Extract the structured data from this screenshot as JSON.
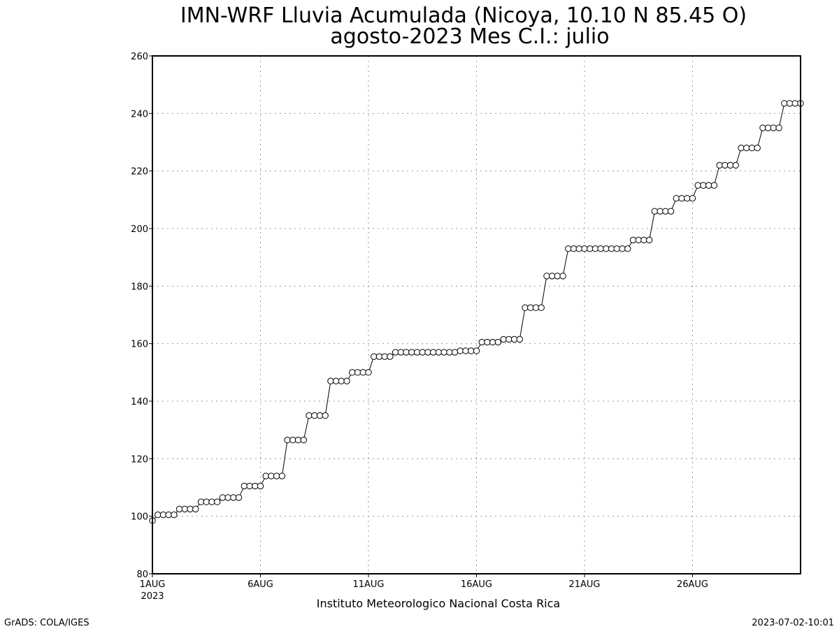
{
  "chart_data": {
    "type": "line",
    "title_line1": "IMN-WRF  Lluvia Acumulada (Nicoya, 10.10  N 85.45  O)",
    "title_line2": "agosto-2023 Mes C.I.: julio",
    "credit": "Instituto Meteorologico Nacional Costa Rica",
    "footer_left": "GrADS: COLA/IGES",
    "footer_right": "2023-07-02-10:01",
    "xlim": [
      1,
      31
    ],
    "ylim": [
      80,
      260
    ],
    "yticks": [
      80,
      100,
      120,
      140,
      160,
      180,
      200,
      220,
      240,
      260
    ],
    "xticks": [
      {
        "day": 1,
        "label": "1AUG",
        "sub": "2023"
      },
      {
        "day": 6,
        "label": "6AUG",
        "sub": ""
      },
      {
        "day": 11,
        "label": "11AUG",
        "sub": ""
      },
      {
        "day": 16,
        "label": "16AUG",
        "sub": ""
      },
      {
        "day": 21,
        "label": "21AUG",
        "sub": ""
      },
      {
        "day": 26,
        "label": "26AUG",
        "sub": ""
      }
    ],
    "grid": true,
    "marker": "open-circle",
    "line_color": "#000000",
    "series": [
      {
        "x": [
          1.0,
          1.25,
          1.5,
          1.75,
          2.0,
          2.25,
          2.5,
          2.75,
          3.0,
          3.25,
          3.5,
          3.75,
          4.0,
          4.25,
          4.5,
          4.75,
          5.0,
          5.25,
          5.5,
          5.75,
          6.0,
          6.25,
          6.5,
          6.75,
          7.0,
          7.25,
          7.5,
          7.75,
          8.0,
          8.25,
          8.5,
          8.75,
          9.0,
          9.25,
          9.5,
          9.75,
          10.0,
          10.25,
          10.5,
          10.75,
          11.0,
          11.25,
          11.5,
          11.75,
          12.0,
          12.25,
          12.5,
          12.75,
          13.0,
          13.25,
          13.5,
          13.75,
          14.0,
          14.25,
          14.5,
          14.75,
          15.0,
          15.25,
          15.5,
          15.75,
          16.0,
          16.25,
          16.5,
          16.75,
          17.0,
          17.25,
          17.5,
          17.75,
          18.0,
          18.25,
          18.5,
          18.75,
          19.0,
          19.25,
          19.5,
          19.75,
          20.0,
          20.25,
          20.5,
          20.75,
          21.0,
          21.25,
          21.5,
          21.75,
          22.0,
          22.25,
          22.5,
          22.75,
          23.0,
          23.25,
          23.5,
          23.75,
          24.0,
          24.25,
          24.5,
          24.75,
          25.0,
          25.25,
          25.5,
          25.75,
          26.0,
          26.25,
          26.5,
          26.75,
          27.0,
          27.25,
          27.5,
          27.75,
          28.0,
          28.25,
          28.5,
          28.75,
          29.0,
          29.25,
          29.5,
          29.75,
          30.0,
          30.25,
          30.5,
          30.75,
          31.0
        ],
        "y": [
          98.5,
          100.5,
          100.5,
          100.5,
          100.5,
          102.5,
          102.5,
          102.5,
          102.5,
          105,
          105,
          105,
          105,
          106.5,
          106.5,
          106.5,
          106.5,
          110.5,
          110.5,
          110.5,
          110.5,
          114,
          114,
          114,
          114,
          126.5,
          126.5,
          126.5,
          126.5,
          135,
          135,
          135,
          135,
          147,
          147,
          147,
          147,
          150,
          150,
          150,
          150,
          155.5,
          155.5,
          155.5,
          155.5,
          157,
          157,
          157,
          157,
          157,
          157,
          157,
          157,
          157,
          157,
          157,
          157,
          157.5,
          157.5,
          157.5,
          157.5,
          160.5,
          160.5,
          160.5,
          160.5,
          161.5,
          161.5,
          161.5,
          161.5,
          172.5,
          172.5,
          172.5,
          172.5,
          183.5,
          183.5,
          183.5,
          183.5,
          193,
          193,
          193,
          193,
          193,
          193,
          193,
          193,
          193,
          193,
          193,
          193,
          196,
          196,
          196,
          196,
          206,
          206,
          206,
          206,
          210.5,
          210.5,
          210.5,
          210.5,
          215,
          215,
          215,
          215,
          222,
          222,
          222,
          222,
          228,
          228,
          228,
          228,
          235,
          235,
          235,
          235,
          243.5,
          243.5,
          243.5,
          243.5
        ]
      }
    ]
  }
}
